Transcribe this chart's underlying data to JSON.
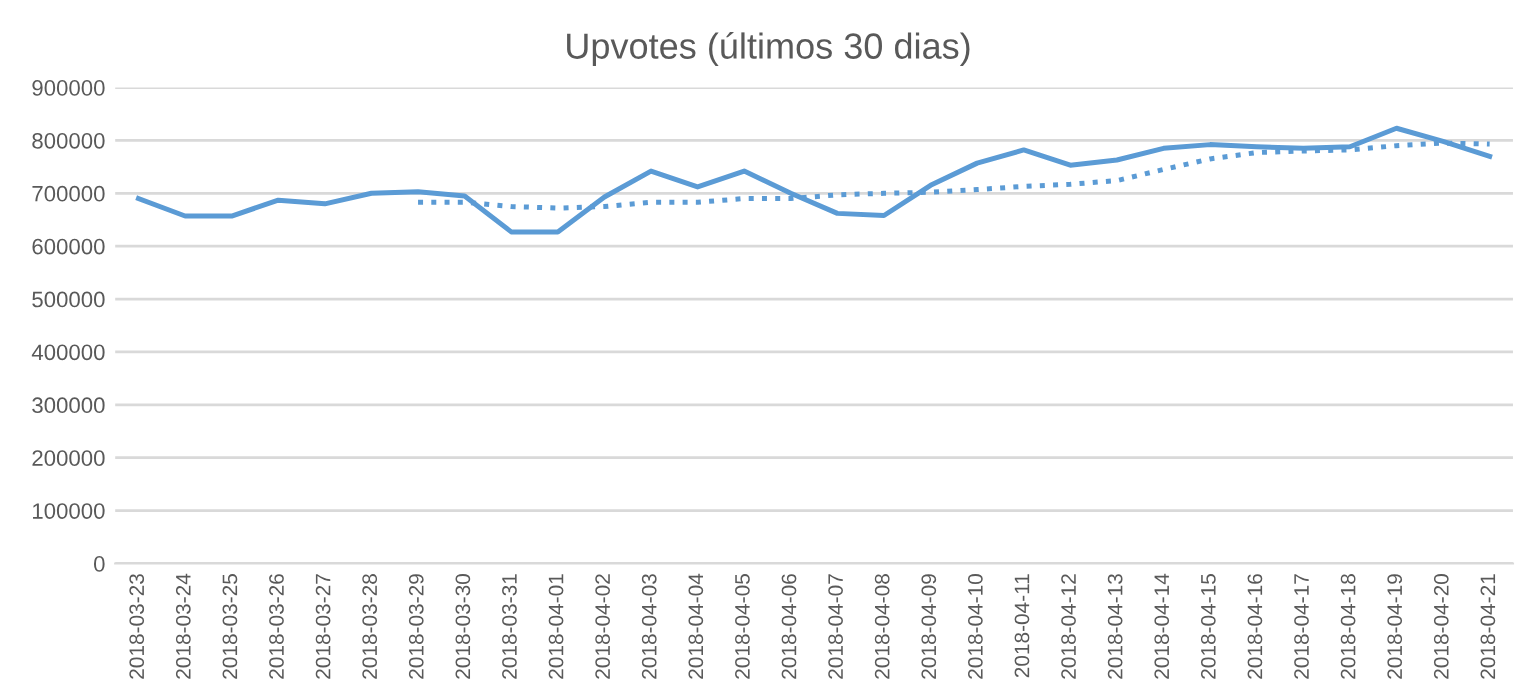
{
  "chart_data": {
    "type": "line",
    "title": "Upvotes (últimos 30 dias)",
    "categories": [
      "2018-03-23",
      "2018-03-24",
      "2018-03-25",
      "2018-03-26",
      "2018-03-27",
      "2018-03-28",
      "2018-03-29",
      "2018-03-30",
      "2018-03-31",
      "2018-04-01",
      "2018-04-02",
      "2018-04-03",
      "2018-04-04",
      "2018-04-05",
      "2018-04-06",
      "2018-04-07",
      "2018-04-08",
      "2018-04-09",
      "2018-04-10",
      "2018-04-11",
      "2018-04-12",
      "2018-04-13",
      "2018-04-14",
      "2018-04-15",
      "2018-04-16",
      "2018-04-17",
      "2018-04-18",
      "2018-04-19",
      "2018-04-20",
      "2018-04-21"
    ],
    "series": [
      {
        "color": "#5b9bd5",
        "line_style": "solid",
        "values": [
          690000,
          657000,
          657000,
          687000,
          680000,
          700000,
          703000,
          695000,
          627000,
          627000,
          693000,
          742000,
          712000,
          742000,
          700000,
          662000,
          658000,
          715000,
          757000,
          782000,
          753000,
          763000,
          785000,
          792000,
          788000,
          785000,
          788000,
          823000,
          798000,
          770000
        ]
      },
      {
        "color": "#5b9bd5",
        "line_style": "dotted",
        "values": [
          null,
          null,
          null,
          null,
          null,
          null,
          683000,
          683000,
          675000,
          672000,
          675000,
          683000,
          683000,
          690000,
          690000,
          697000,
          700000,
          702000,
          707000,
          713000,
          717000,
          724000,
          745000,
          765000,
          777000,
          780000,
          782000,
          790000,
          795000,
          793000
        ]
      }
    ],
    "ylim": [
      0,
      900000
    ],
    "yticks": [
      0,
      100000,
      200000,
      300000,
      400000,
      500000,
      600000,
      700000,
      800000,
      900000
    ],
    "grid": "y",
    "legend": false
  }
}
